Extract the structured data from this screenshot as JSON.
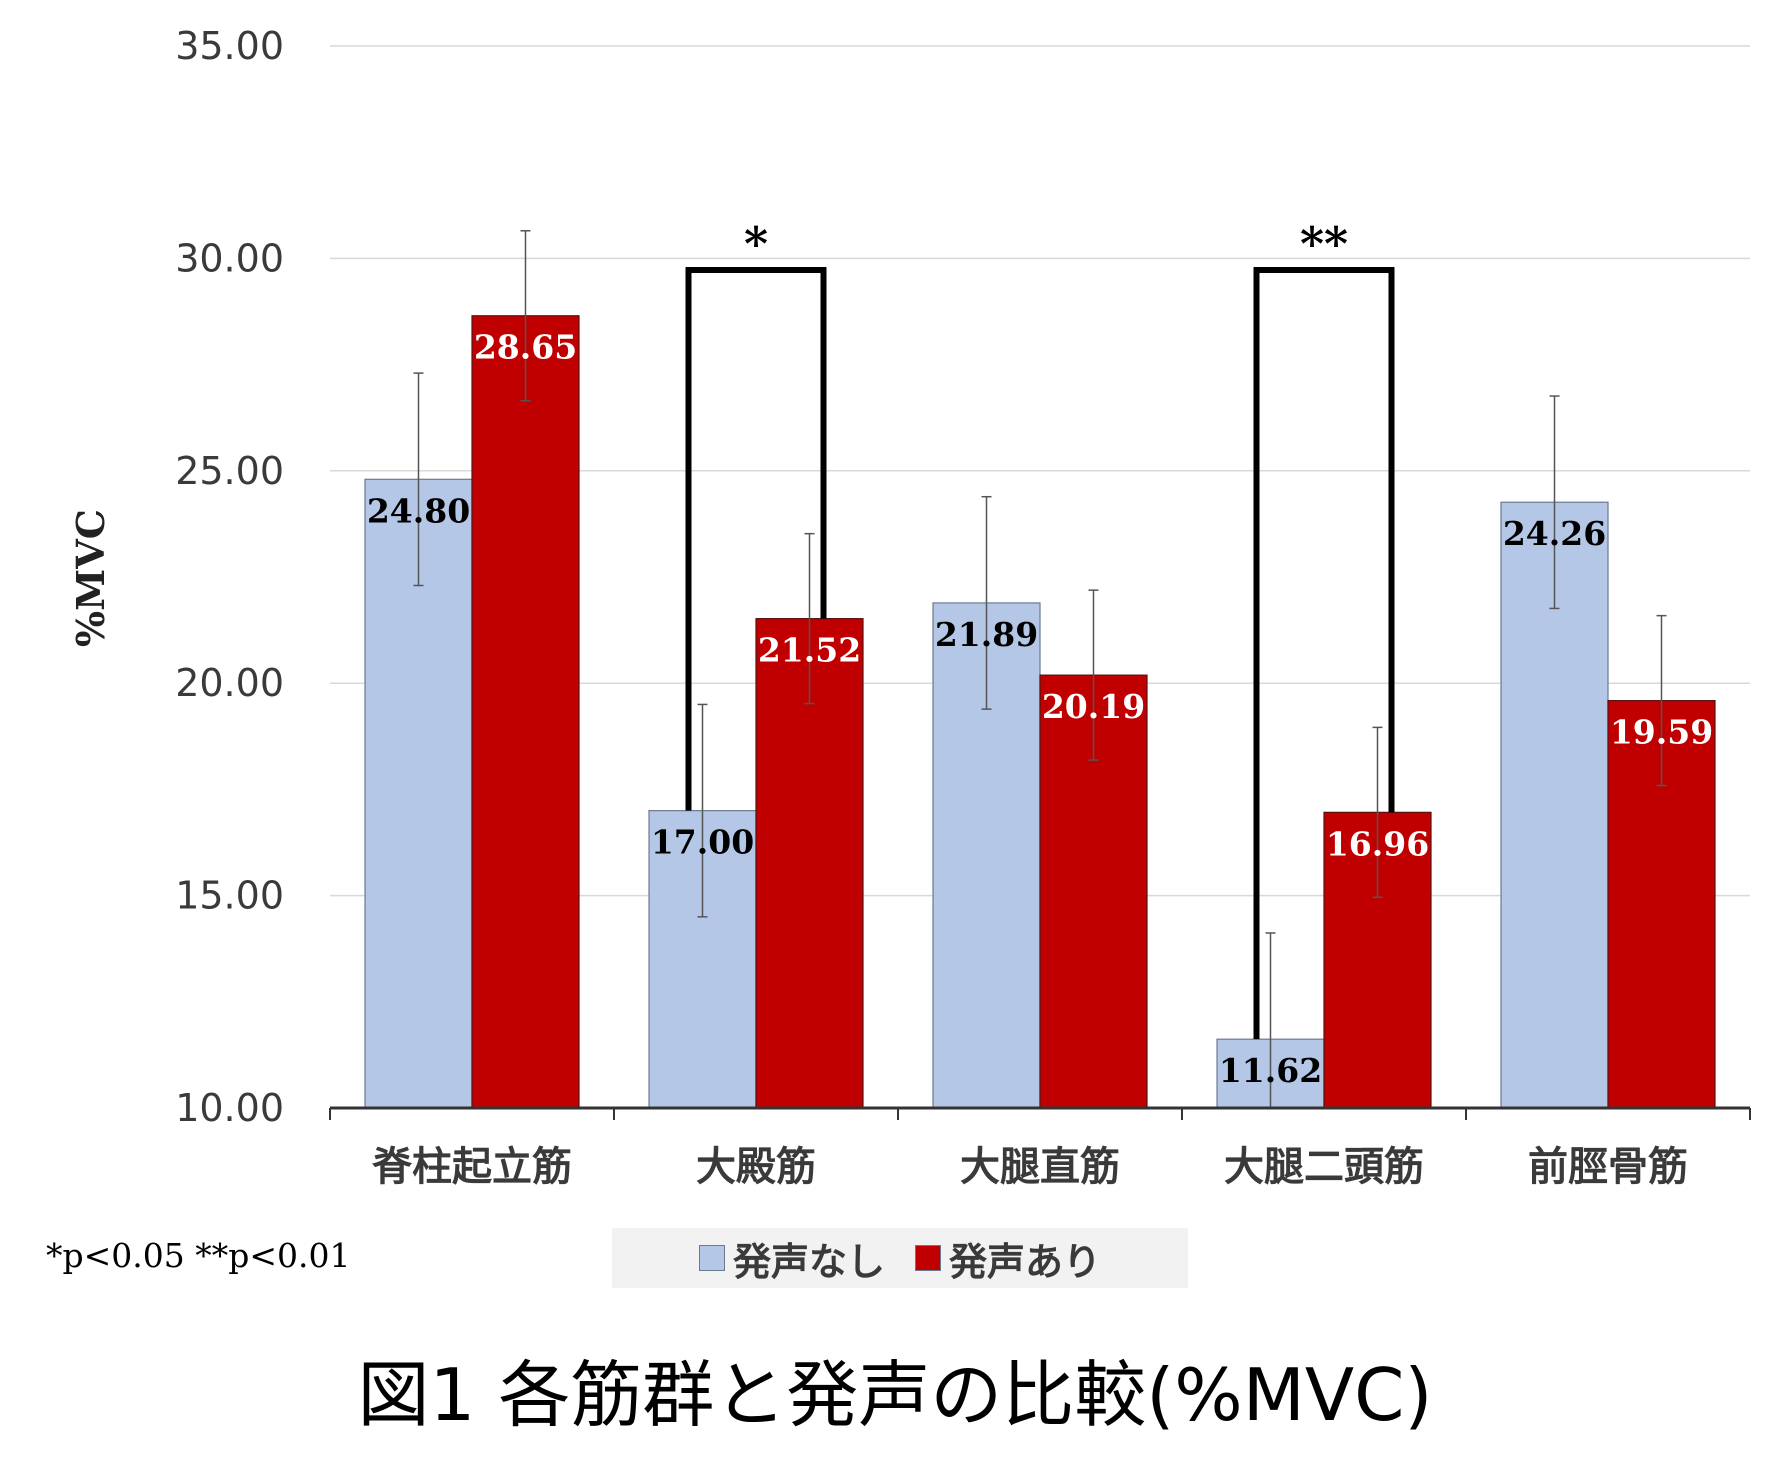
{
  "chart_data": {
    "type": "bar",
    "title": "",
    "xlabel": "",
    "ylabel": "%MVC",
    "ylim": [
      10,
      35
    ],
    "yticks": [
      "10.00",
      "15.00",
      "20.00",
      "25.00",
      "30.00",
      "35.00"
    ],
    "grid": true,
    "categories": [
      "脊柱起立筋",
      "大殿筋",
      "大腿直筋",
      "大腿二頭筋",
      "前脛骨筋"
    ],
    "series": [
      {
        "name": "発声なし",
        "color": "#b4c7e7",
        "values": [
          24.8,
          17.0,
          21.89,
          11.62,
          24.26
        ],
        "labels": [
          "24.80",
          "17.00",
          "21.89",
          "11.62",
          "24.26"
        ],
        "error": [
          2.5,
          2.5,
          2.5,
          2.5,
          2.5
        ]
      },
      {
        "name": "発声あり",
        "color": "#c00000",
        "values": [
          28.65,
          21.52,
          20.19,
          16.96,
          19.59
        ],
        "labels": [
          "28.65",
          "21.52",
          "20.19",
          "16.96",
          "19.59"
        ],
        "error": [
          2.0,
          2.0,
          2.0,
          2.0,
          2.0
        ]
      }
    ],
    "significance": [
      {
        "category": "大殿筋",
        "marker": "*"
      },
      {
        "category": "大腿二頭筋",
        "marker": "**"
      }
    ],
    "legend_position": "bottom"
  },
  "note": "*p<0.05 **p<0.01",
  "caption": "図1 各筋群と発声の比較(%MVC)"
}
